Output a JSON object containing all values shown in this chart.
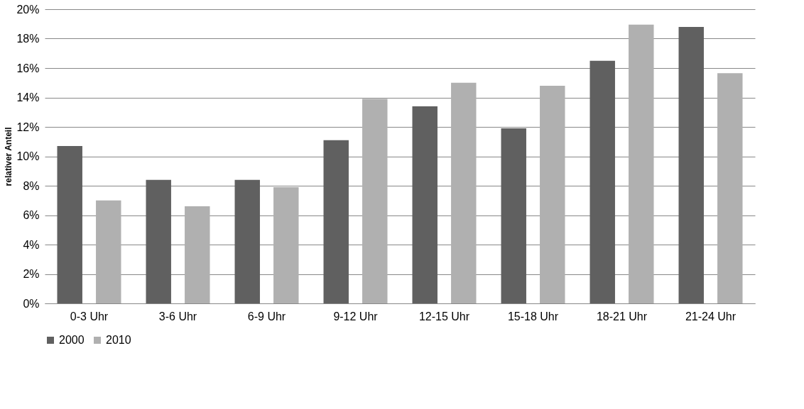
{
  "chart_data": {
    "type": "bar",
    "ylabel": "relativer Anteil",
    "categories": [
      "0-3 Uhr",
      "3-6 Uhr",
      "6-9 Uhr",
      "9-12 Uhr",
      "12-15 Uhr",
      "15-18 Uhr",
      "18-21 Uhr",
      "21-24 Uhr"
    ],
    "series": [
      {
        "name": "2000",
        "color": "#606060",
        "values": [
          10.7,
          8.4,
          8.4,
          11.1,
          13.4,
          11.9,
          16.5,
          18.8
        ]
      },
      {
        "name": "2010",
        "color": "#b0b0b0",
        "values": [
          7.0,
          6.6,
          7.9,
          13.9,
          15.0,
          14.8,
          18.95,
          15.65
        ]
      }
    ],
    "ylim": [
      0,
      20
    ],
    "yticks": [
      {
        "value": 0,
        "label": "0%"
      },
      {
        "value": 2,
        "label": "2%"
      },
      {
        "value": 4,
        "label": "4%"
      },
      {
        "value": 6,
        "label": "6%"
      },
      {
        "value": 8,
        "label": "8%"
      },
      {
        "value": 10,
        "label": "10%"
      },
      {
        "value": 12,
        "label": "12%"
      },
      {
        "value": 14,
        "label": "14%"
      },
      {
        "value": 16,
        "label": "16%"
      },
      {
        "value": 18,
        "label": "18%"
      },
      {
        "value": 20,
        "label": "20%"
      }
    ],
    "grid": "y",
    "legend": "bottom"
  }
}
